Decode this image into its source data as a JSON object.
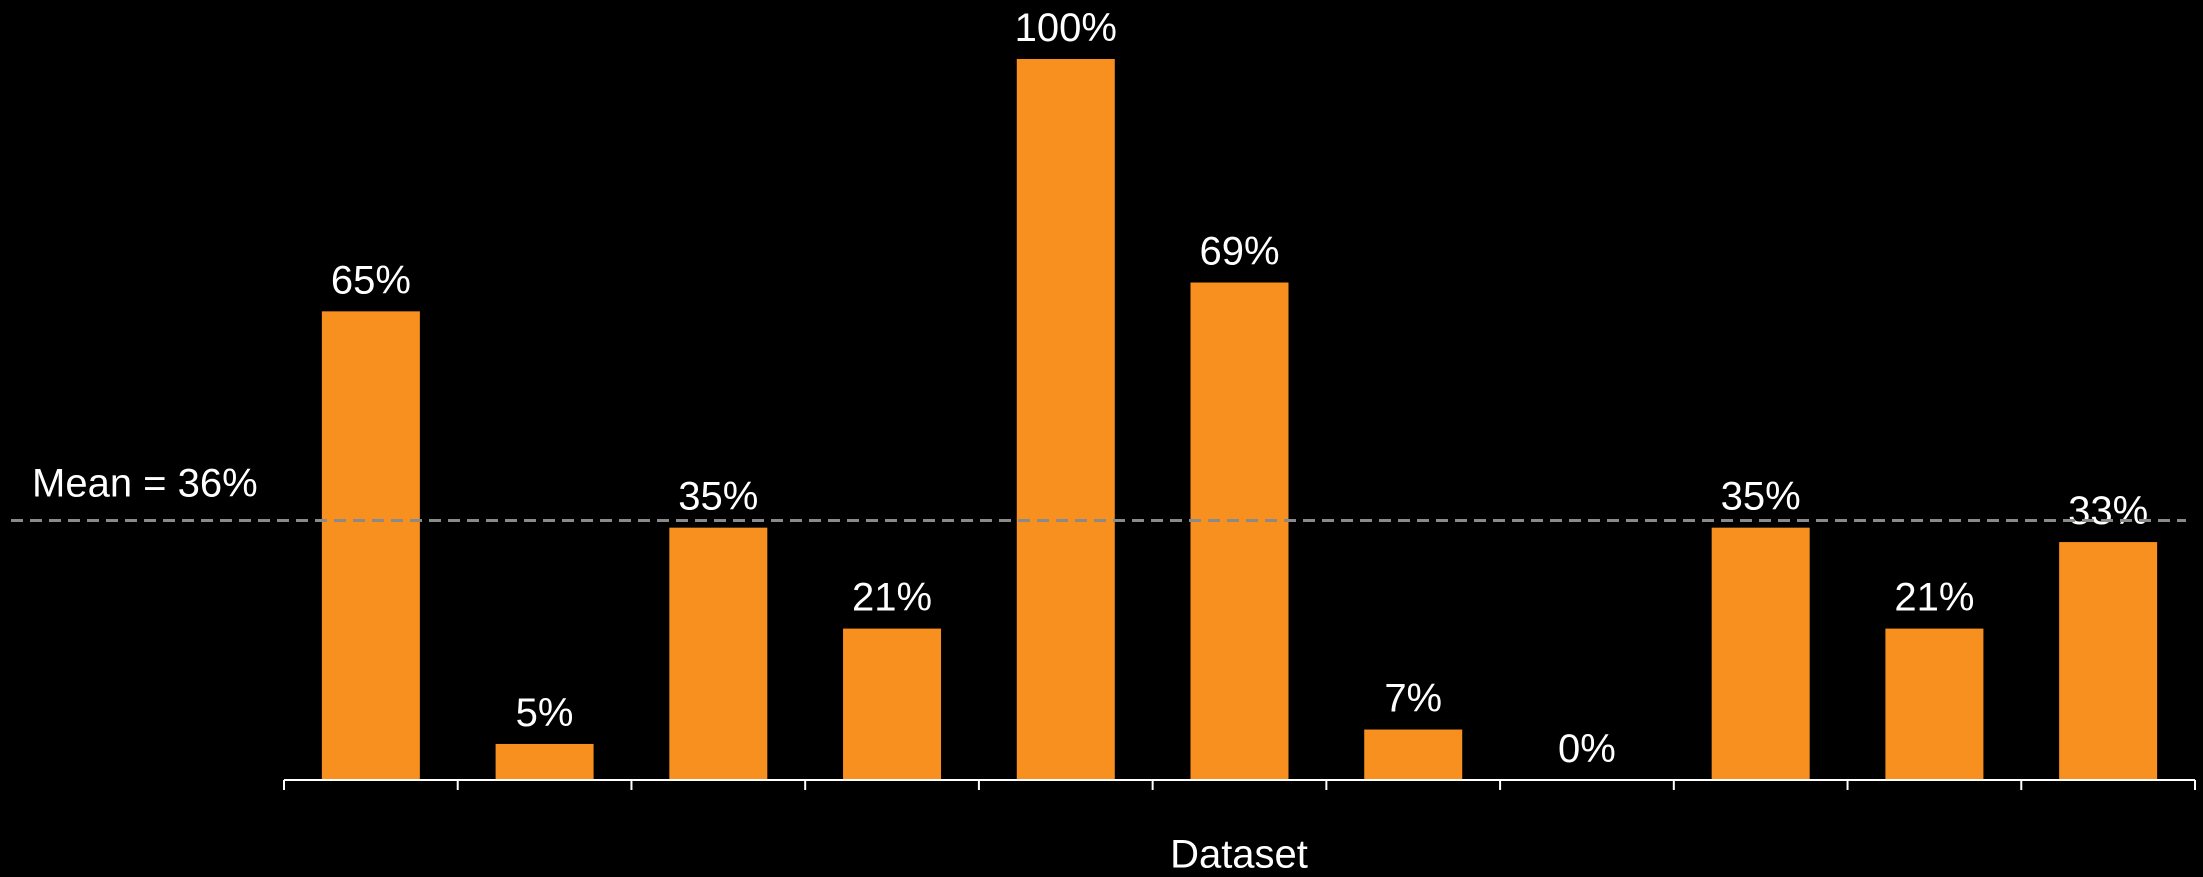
{
  "chart_data": {
    "type": "bar",
    "categories": [
      null,
      null,
      null,
      null,
      null,
      null,
      null,
      null,
      null,
      null,
      null
    ],
    "values": [
      65,
      5,
      35,
      21,
      100,
      69,
      7,
      0,
      35,
      21,
      33
    ],
    "value_labels": [
      "65%",
      "5%",
      "35%",
      "21%",
      "100%",
      "69%",
      "7%",
      "0%",
      "35%",
      "21%",
      "33%"
    ],
    "color": "#f7901e",
    "ylim": [
      0,
      100
    ],
    "xlabel": "Dataset",
    "mean": {
      "value": 36,
      "label": "Mean = 36%"
    }
  }
}
